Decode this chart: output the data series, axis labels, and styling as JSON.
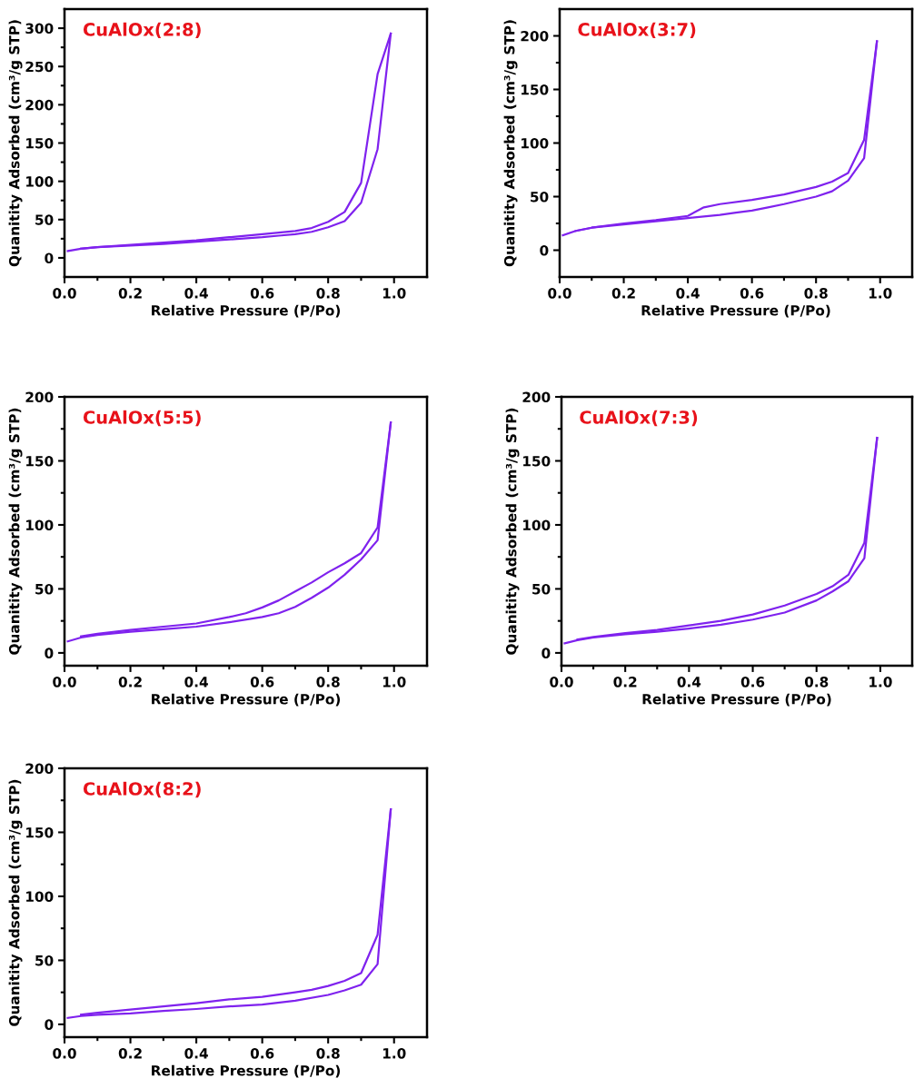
{
  "chart_data": [
    {
      "type": "line",
      "title": "CuAlOx(2:8)",
      "xlabel": "Relative Pressure (P/Po)",
      "ylabel": "Quanitity Adsorbed (cm³/g STP)",
      "xlim": [
        0,
        1.1
      ],
      "ylim": [
        -25,
        325
      ],
      "line_style": "solid",
      "marker": "none",
      "legend": false,
      "grid": false,
      "xticks": [
        {
          "value": 0,
          "label": "0.0"
        },
        {
          "value": 0.1,
          "label": null
        },
        0.2,
        {
          "value": 0.3,
          "label": null
        },
        0.4,
        {
          "value": 0.5,
          "label": null
        },
        0.6,
        {
          "value": 0.7,
          "label": null
        },
        0.8,
        {
          "value": 0.9,
          "label": null
        },
        {
          "value": 1,
          "label": "1.0"
        }
      ],
      "yticks": [
        0,
        {
          "value": 25,
          "label": null
        },
        50,
        {
          "value": 75,
          "label": null
        },
        100,
        {
          "value": 125,
          "label": null
        },
        150,
        {
          "value": 175,
          "label": null
        },
        200,
        {
          "value": 225,
          "label": null
        },
        250,
        {
          "value": 275,
          "label": null
        },
        300
      ],
      "series": [
        {
          "color": "#7f22ee",
          "x": [
            0.01,
            0.05,
            0.1,
            0.2,
            0.3,
            0.4,
            0.5,
            0.6,
            0.65,
            0.7,
            0.75,
            0.8,
            0.85,
            0.9,
            0.95,
            0.99
          ],
          "values": [
            9,
            12,
            14,
            16,
            18,
            21,
            24,
            27,
            29,
            31,
            34,
            40,
            48,
            72,
            142,
            293
          ]
        },
        {
          "color": "#7f22ee",
          "x": [
            0.99,
            0.95,
            0.9,
            0.85,
            0.8,
            0.75,
            0.7,
            0.6,
            0.5,
            0.4,
            0.3,
            0.2,
            0.1,
            0.05
          ],
          "values": [
            293,
            240,
            98,
            60,
            47,
            39,
            35,
            31,
            27,
            23,
            20,
            17,
            14,
            12
          ]
        }
      ]
    },
    {
      "type": "line",
      "title": "CuAlOx(3:7)",
      "xlabel": "Relative Pressure (P/Po)",
      "ylabel": "Quanitity Adsorbed (cm³/g STP)",
      "xlim": [
        0,
        1.1
      ],
      "ylim": [
        -25,
        225
      ],
      "line_style": "solid",
      "marker": "none",
      "legend": false,
      "grid": false,
      "xticks": [
        {
          "value": 0,
          "label": "0.0"
        },
        {
          "value": 0.1,
          "label": null
        },
        0.2,
        {
          "value": 0.3,
          "label": null
        },
        0.4,
        {
          "value": 0.5,
          "label": null
        },
        0.6,
        {
          "value": 0.7,
          "label": null
        },
        0.8,
        {
          "value": 0.9,
          "label": null
        },
        {
          "value": 1,
          "label": "1.0"
        }
      ],
      "yticks": [
        0,
        {
          "value": 25,
          "label": null
        },
        50,
        {
          "value": 75,
          "label": null
        },
        100,
        {
          "value": 125,
          "label": null
        },
        150,
        {
          "value": 175,
          "label": null
        },
        200
      ],
      "series": [
        {
          "color": "#7f22ee",
          "x": [
            0.01,
            0.05,
            0.1,
            0.2,
            0.3,
            0.4,
            0.5,
            0.55,
            0.6,
            0.65,
            0.7,
            0.8,
            0.85,
            0.9,
            0.95,
            0.99
          ],
          "values": [
            14,
            18,
            21,
            24,
            27,
            30,
            33,
            35,
            37,
            40,
            43,
            50,
            55,
            65,
            86,
            195
          ]
        },
        {
          "color": "#7f22ee",
          "x": [
            0.99,
            0.95,
            0.9,
            0.85,
            0.8,
            0.7,
            0.6,
            0.5,
            0.45,
            0.4,
            0.3,
            0.2,
            0.1,
            0.05
          ],
          "values": [
            195,
            103,
            72,
            64,
            59,
            52,
            47,
            43,
            40,
            32,
            28,
            25,
            21,
            18
          ]
        }
      ]
    },
    {
      "type": "line",
      "title": "CuAlOx(5:5)",
      "xlabel": "Relative Pressure (P/Po)",
      "ylabel": "Quanitity Adsorbed (cm³/g STP)",
      "xlim": [
        0,
        1.1
      ],
      "ylim": [
        -10,
        200
      ],
      "line_style": "solid",
      "marker": "none",
      "legend": false,
      "grid": false,
      "xticks": [
        {
          "value": 0,
          "label": "0.0"
        },
        {
          "value": 0.1,
          "label": null
        },
        0.2,
        {
          "value": 0.3,
          "label": null
        },
        0.4,
        {
          "value": 0.5,
          "label": null
        },
        0.6,
        {
          "value": 0.7,
          "label": null
        },
        0.8,
        {
          "value": 0.9,
          "label": null
        },
        {
          "value": 1,
          "label": "1.0"
        }
      ],
      "yticks": [
        0,
        {
          "value": 25,
          "label": null
        },
        50,
        {
          "value": 75,
          "label": null
        },
        100,
        {
          "value": 125,
          "label": null
        },
        150,
        {
          "value": 175,
          "label": null
        },
        200
      ],
      "series": [
        {
          "color": "#7f22ee",
          "x": [
            0.01,
            0.05,
            0.1,
            0.2,
            0.3,
            0.4,
            0.5,
            0.6,
            0.65,
            0.7,
            0.75,
            0.8,
            0.85,
            0.9,
            0.95,
            0.99
          ],
          "values": [
            9,
            12,
            14,
            16.5,
            18.5,
            20.5,
            24,
            28,
            31,
            36,
            43,
            51,
            61,
            73,
            88,
            180
          ]
        },
        {
          "color": "#7f22ee",
          "x": [
            0.99,
            0.95,
            0.9,
            0.85,
            0.8,
            0.75,
            0.7,
            0.65,
            0.6,
            0.55,
            0.5,
            0.4,
            0.3,
            0.2,
            0.1,
            0.05
          ],
          "values": [
            180,
            98,
            78,
            70,
            63,
            55,
            48,
            41,
            35.5,
            31,
            28,
            23,
            20.5,
            18,
            15,
            13
          ]
        }
      ]
    },
    {
      "type": "line",
      "title": "CuAlOx(7:3)",
      "xlabel": "Relative Pressure (P/Po)",
      "ylabel": "Quanitity Adsorbed (cm³/g STP)",
      "xlim": [
        0,
        1.1
      ],
      "ylim": [
        -10,
        200
      ],
      "line_style": "solid",
      "marker": "none",
      "legend": false,
      "grid": false,
      "xticks": [
        {
          "value": 0,
          "label": "0.0"
        },
        {
          "value": 0.1,
          "label": null
        },
        0.2,
        {
          "value": 0.3,
          "label": null
        },
        0.4,
        {
          "value": 0.5,
          "label": null
        },
        0.6,
        {
          "value": 0.7,
          "label": null
        },
        0.8,
        {
          "value": 0.9,
          "label": null
        },
        {
          "value": 1,
          "label": "1.0"
        }
      ],
      "yticks": [
        0,
        {
          "value": 25,
          "label": null
        },
        50,
        {
          "value": 75,
          "label": null
        },
        100,
        {
          "value": 125,
          "label": null
        },
        150,
        {
          "value": 175,
          "label": null
        },
        200
      ],
      "series": [
        {
          "color": "#7f22ee",
          "x": [
            0.01,
            0.05,
            0.1,
            0.2,
            0.3,
            0.4,
            0.5,
            0.6,
            0.7,
            0.8,
            0.85,
            0.9,
            0.95,
            0.99
          ],
          "values": [
            7.5,
            10,
            12,
            14.5,
            16.5,
            19,
            22,
            26,
            31.5,
            41,
            48,
            56,
            74,
            168
          ]
        },
        {
          "color": "#7f22ee",
          "x": [
            0.99,
            0.95,
            0.9,
            0.85,
            0.8,
            0.7,
            0.6,
            0.5,
            0.4,
            0.3,
            0.2,
            0.1,
            0.05
          ],
          "values": [
            168,
            86,
            61,
            52,
            46,
            37,
            30,
            25,
            21.5,
            18,
            15.5,
            12.5,
            10.5
          ]
        }
      ]
    },
    {
      "type": "line",
      "title": "CuAlOx(8:2)",
      "xlabel": "Relative Pressure (P/Po)",
      "ylabel": "Quanitity Adsorbed (cm³/g STP)",
      "xlim": [
        0,
        1.1
      ],
      "ylim": [
        -10,
        200
      ],
      "line_style": "solid",
      "marker": "none",
      "legend": false,
      "grid": false,
      "xticks": [
        {
          "value": 0,
          "label": "0.0"
        },
        {
          "value": 0.1,
          "label": null
        },
        0.2,
        {
          "value": 0.3,
          "label": null
        },
        0.4,
        {
          "value": 0.5,
          "label": null
        },
        0.6,
        {
          "value": 0.7,
          "label": null
        },
        0.8,
        {
          "value": 0.9,
          "label": null
        },
        {
          "value": 1,
          "label": "1.0"
        }
      ],
      "yticks": [
        0,
        {
          "value": 25,
          "label": null
        },
        50,
        {
          "value": 75,
          "label": null
        },
        100,
        {
          "value": 125,
          "label": null
        },
        150,
        {
          "value": 175,
          "label": null
        },
        200
      ],
      "series": [
        {
          "color": "#7f22ee",
          "x": [
            0.01,
            0.05,
            0.1,
            0.2,
            0.3,
            0.4,
            0.5,
            0.6,
            0.7,
            0.8,
            0.85,
            0.9,
            0.95,
            0.99
          ],
          "values": [
            5,
            6.5,
            7.5,
            8.5,
            10.5,
            12,
            14,
            15.5,
            18.5,
            23,
            26.5,
            31,
            47,
            168
          ]
        },
        {
          "color": "#7f22ee",
          "x": [
            0.99,
            0.95,
            0.9,
            0.85,
            0.8,
            0.75,
            0.7,
            0.6,
            0.5,
            0.4,
            0.3,
            0.2,
            0.1,
            0.05
          ],
          "values": [
            168,
            70,
            40,
            34,
            30,
            27,
            25,
            21.5,
            19.5,
            16.5,
            14,
            11.5,
            9,
            7.5
          ]
        }
      ]
    }
  ]
}
